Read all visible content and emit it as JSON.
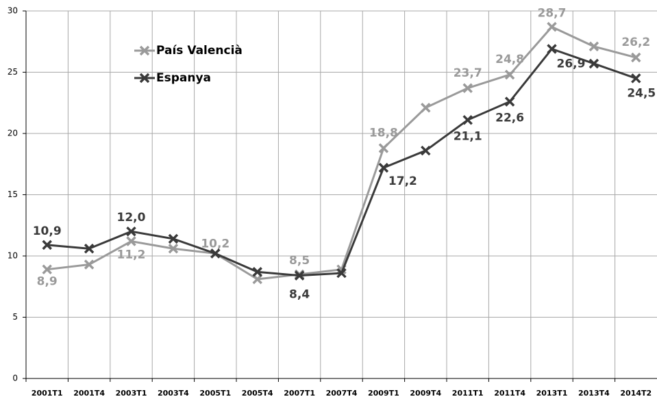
{
  "chart_data": {
    "type": "line",
    "categories": [
      "2001T1",
      "2001T4",
      "2003T1",
      "2003T4",
      "2005T1",
      "2005T4",
      "2007T1",
      "2007T4",
      "2009T1",
      "2009T4",
      "2011T1",
      "2011T4",
      "2013T1",
      "2013T4",
      "2014T2"
    ],
    "series": [
      {
        "name": "País Valencià",
        "color": "#9a9a9a",
        "values": [
          8.9,
          9.3,
          11.2,
          10.6,
          10.2,
          8.1,
          8.5,
          8.9,
          18.8,
          22.1,
          23.7,
          24.8,
          28.7,
          27.1,
          26.2
        ],
        "value_labels": [
          "8,9",
          null,
          "11,2",
          null,
          "10,2",
          null,
          "8,5",
          null,
          "18,8",
          null,
          "23,7",
          "24,8",
          "28,7",
          null,
          "26,2"
        ]
      },
      {
        "name": "Espanya",
        "color": "#3a3a3a",
        "values": [
          10.9,
          10.6,
          12.0,
          11.4,
          10.2,
          8.7,
          8.4,
          8.6,
          17.2,
          18.6,
          21.1,
          22.6,
          26.9,
          25.7,
          24.5
        ],
        "value_labels": [
          "10,9",
          null,
          "12,0",
          null,
          null,
          null,
          "8,4",
          null,
          "17,2",
          null,
          "21,1",
          "22,6",
          "26,9",
          null,
          "24,5"
        ]
      }
    ],
    "ylim": [
      0,
      30
    ],
    "yticks": [
      0,
      5,
      10,
      15,
      20,
      25,
      30
    ],
    "grid": true,
    "legend": "upper left"
  }
}
